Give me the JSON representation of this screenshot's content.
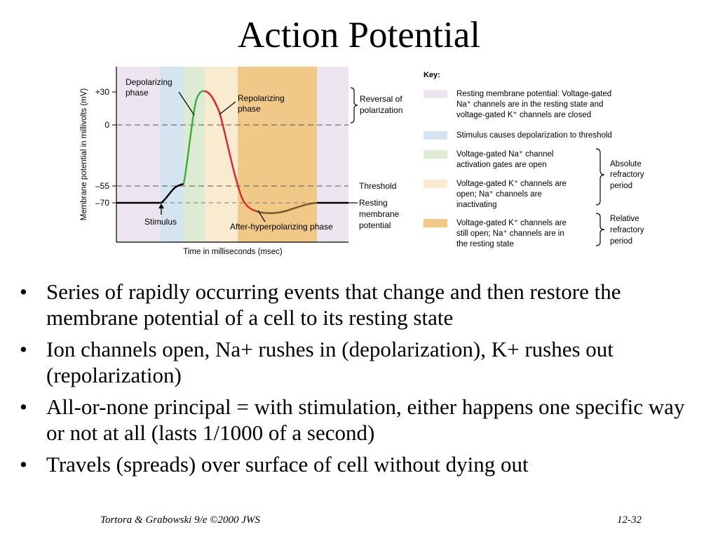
{
  "slide": {
    "title": "Action Potential",
    "bullets": [
      "Series of rapidly occurring events that change and then restore the membrane potential of a cell to its resting state",
      "Ion channels open, Na+ rushes in (depolarization), K+ rushes out (repolarization)",
      "All-or-none principal = with stimulation, either happens one specific way or not at all (lasts 1/1000 of a second)",
      "Travels (spreads) over surface of cell without dying out"
    ],
    "bullet_char": "•",
    "footer_left": "Tortora & Grabowski 9/e ©2000 JWS",
    "footer_right": "12-32"
  },
  "diagram": {
    "y_axis_label": "Membrane potential in millivolts (mV)",
    "x_axis_label": "Time in milliseconds (msec)",
    "y_ticks": [
      {
        "value": 30,
        "label": "+30"
      },
      {
        "value": 0,
        "label": "0"
      },
      {
        "value": -55,
        "label": "–55"
      },
      {
        "value": -70,
        "label": "–70"
      }
    ],
    "phase_labels": {
      "depolarizing_line1": "Depolarizing",
      "depolarizing_line2": "phase",
      "repolarizing_line1": "Repolarizing",
      "repolarizing_line2": "phase",
      "stimulus": "Stimulus",
      "after_hyperpolarizing": "After-hyperpolarizing phase"
    },
    "right_labels": {
      "reversal_line1": "Reversal of",
      "reversal_line2": "polarization",
      "threshold": "Threshold",
      "resting_line1": "Resting",
      "resting_line2": "membrane",
      "resting_line3": "potential"
    },
    "colors": {
      "resting": "#ece4ee",
      "stimulus": "#d4e4f0",
      "na_open": "#dcebd2",
      "k_open_na_inactivating": "#f8ebcf",
      "k_still_open": "#f0c887",
      "curve_black": "#000000",
      "curve_green": "#3fae49",
      "curve_red": "#d8292f",
      "curve_brown": "#7a5a2a"
    },
    "key": {
      "title": "Key:",
      "items": [
        {
          "color": "#ece4ee",
          "lines": [
            "Resting membrane potential: Voltage-gated",
            "Na⁺ channels are in the resting state and",
            "voltage-gated K⁺ channels are closed"
          ]
        },
        {
          "color": "#d4e4f0",
          "lines": [
            "Stimulus causes depolarization to threshold"
          ]
        },
        {
          "color": "#dcebd2",
          "lines": [
            "Voltage-gated Na⁺ channel",
            "activation gates are open"
          ]
        },
        {
          "color": "#f8ebcf",
          "lines": [
            "Voltage-gated K⁺ channels are",
            "open; Na⁺ channels are",
            "inactivating"
          ]
        },
        {
          "color": "#f0c887",
          "lines": [
            "Voltage-gated K⁺ channels are",
            "still open; Na⁺ channels are in",
            "the resting state"
          ]
        }
      ],
      "absolute_line1": "Absolute",
      "absolute_line2": "refractory",
      "absolute_line3": "period",
      "relative_line1": "Relative",
      "relative_line2": "refractory",
      "relative_line3": "period"
    }
  }
}
